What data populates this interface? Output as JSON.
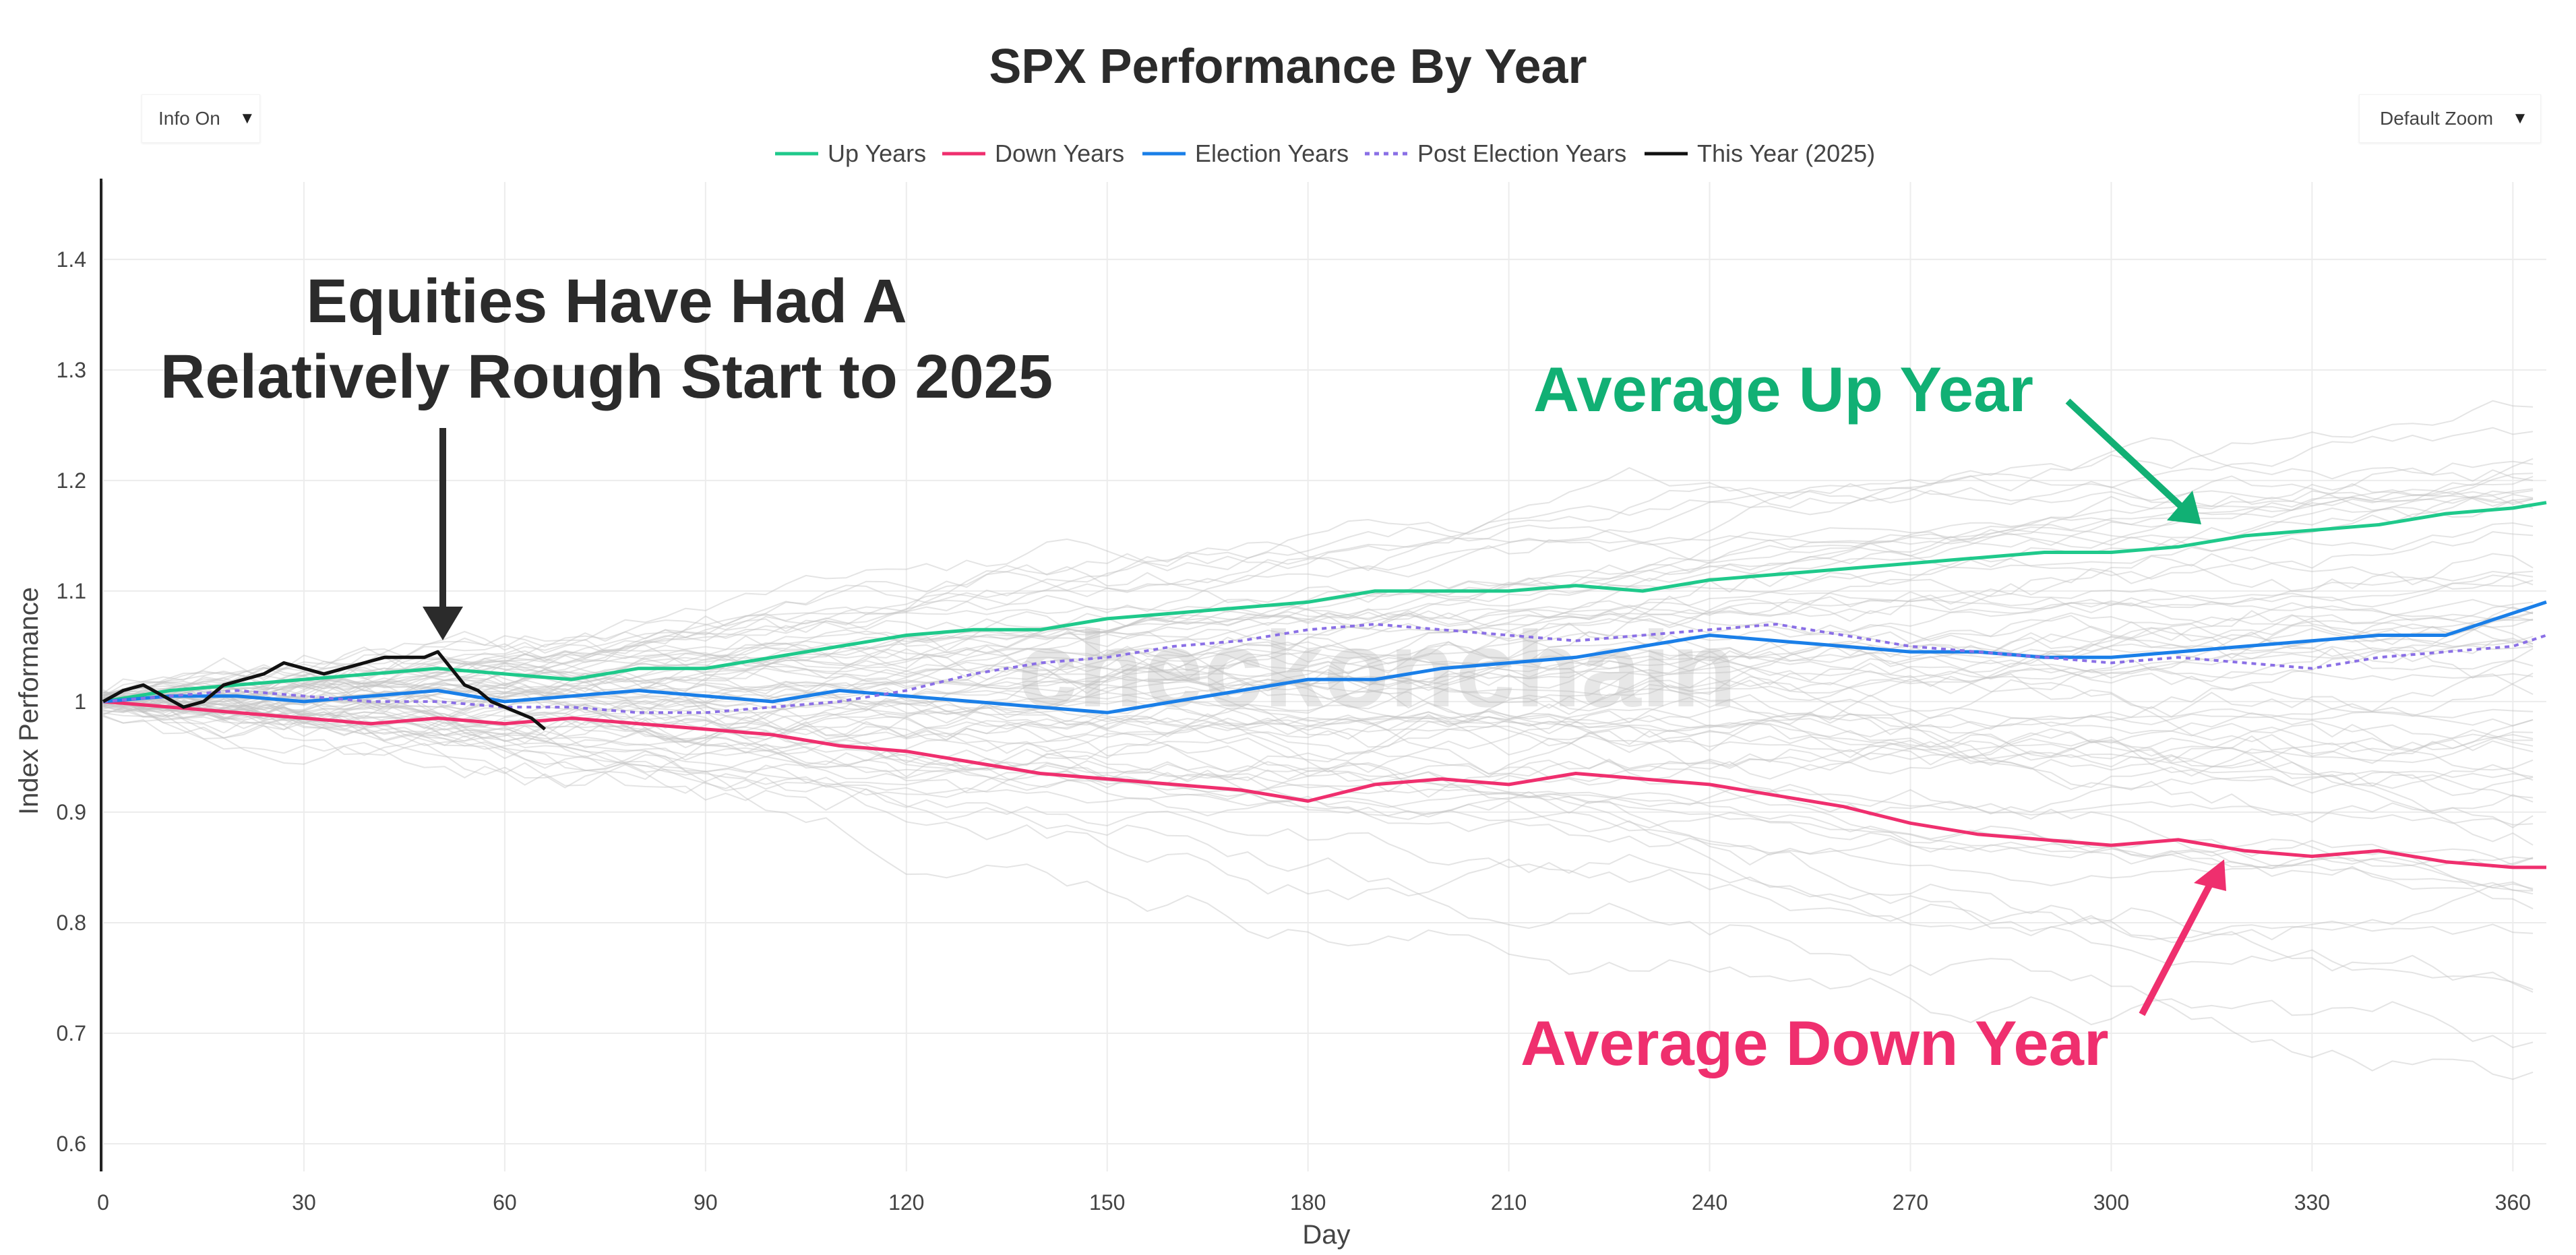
{
  "controls": {
    "info_label": "Info On",
    "zoom_label": "Default Zoom",
    "caret": "▼"
  },
  "colors": {
    "up": "#1fc98b",
    "down": "#ef2f6e",
    "election": "#1a7fe8",
    "post_election": "#8a6fe6",
    "this_year": "#111111",
    "background_lines": "#c4c4c4",
    "annotation_up": "#11b074",
    "annotation_down": "#ef2f6e",
    "annotation_black": "#2b2b2b"
  },
  "chart_data": {
    "type": "line",
    "title": "SPX Performance By Year",
    "xlabel": "Day",
    "ylabel": "Index Performance",
    "xlim": [
      0,
      365
    ],
    "ylim": [
      0.575,
      1.47
    ],
    "xticks": [
      0,
      30,
      60,
      90,
      120,
      150,
      180,
      210,
      240,
      270,
      300,
      330,
      360
    ],
    "yticks": [
      0.6,
      0.7,
      0.8,
      0.9,
      1.0,
      1.1,
      1.2,
      1.3,
      1.4
    ],
    "ytick_labels": [
      "0.6",
      "0.7",
      "0.8",
      "0.9",
      "1",
      "1.1",
      "1.2",
      "1.3",
      "1.4"
    ],
    "legend_position": "top-center",
    "series": [
      {
        "name": "Up Years",
        "style": "solid",
        "x": [
          0,
          10,
          20,
          30,
          40,
          50,
          60,
          70,
          80,
          90,
          100,
          110,
          120,
          130,
          140,
          150,
          160,
          170,
          180,
          190,
          200,
          210,
          220,
          230,
          240,
          250,
          260,
          270,
          280,
          290,
          300,
          310,
          320,
          330,
          340,
          350,
          360,
          365
        ],
        "y": [
          1.0,
          1.01,
          1.015,
          1.02,
          1.025,
          1.03,
          1.025,
          1.02,
          1.03,
          1.03,
          1.04,
          1.05,
          1.06,
          1.065,
          1.065,
          1.075,
          1.08,
          1.085,
          1.09,
          1.1,
          1.1,
          1.1,
          1.105,
          1.1,
          1.11,
          1.115,
          1.12,
          1.125,
          1.13,
          1.135,
          1.135,
          1.14,
          1.15,
          1.155,
          1.16,
          1.17,
          1.175,
          1.18
        ]
      },
      {
        "name": "Down Years",
        "style": "solid",
        "x": [
          0,
          10,
          20,
          30,
          40,
          50,
          60,
          70,
          80,
          90,
          100,
          110,
          120,
          130,
          140,
          150,
          160,
          170,
          180,
          190,
          200,
          210,
          220,
          230,
          240,
          250,
          260,
          270,
          280,
          290,
          300,
          310,
          320,
          330,
          340,
          350,
          360,
          365
        ],
        "y": [
          1.0,
          0.995,
          0.99,
          0.985,
          0.98,
          0.985,
          0.98,
          0.985,
          0.98,
          0.975,
          0.97,
          0.96,
          0.955,
          0.945,
          0.935,
          0.93,
          0.925,
          0.92,
          0.91,
          0.925,
          0.93,
          0.925,
          0.935,
          0.93,
          0.925,
          0.915,
          0.905,
          0.89,
          0.88,
          0.875,
          0.87,
          0.875,
          0.865,
          0.86,
          0.865,
          0.855,
          0.85,
          0.85
        ]
      },
      {
        "name": "Election Years",
        "style": "solid",
        "x": [
          0,
          10,
          20,
          30,
          40,
          50,
          60,
          70,
          80,
          90,
          100,
          110,
          120,
          130,
          140,
          150,
          160,
          170,
          180,
          190,
          200,
          210,
          220,
          230,
          240,
          250,
          260,
          270,
          280,
          290,
          300,
          310,
          320,
          330,
          340,
          350,
          360,
          365
        ],
        "y": [
          1.0,
          1.005,
          1.005,
          1.0,
          1.005,
          1.01,
          1.0,
          1.005,
          1.01,
          1.005,
          1.0,
          1.01,
          1.005,
          1.0,
          0.995,
          0.99,
          1.0,
          1.01,
          1.02,
          1.02,
          1.03,
          1.035,
          1.04,
          1.05,
          1.06,
          1.055,
          1.05,
          1.045,
          1.045,
          1.04,
          1.04,
          1.045,
          1.05,
          1.055,
          1.06,
          1.06,
          1.08,
          1.09
        ]
      },
      {
        "name": "Post Election Years",
        "style": "dotted",
        "x": [
          0,
          10,
          20,
          30,
          40,
          50,
          60,
          70,
          80,
          90,
          100,
          110,
          120,
          130,
          140,
          150,
          160,
          170,
          180,
          190,
          200,
          210,
          220,
          230,
          240,
          250,
          260,
          270,
          280,
          290,
          300,
          310,
          320,
          330,
          340,
          350,
          360,
          365
        ],
        "y": [
          1.0,
          1.005,
          1.01,
          1.005,
          1.0,
          1.0,
          0.995,
          0.995,
          0.99,
          0.99,
          0.995,
          1.0,
          1.01,
          1.025,
          1.035,
          1.04,
          1.05,
          1.055,
          1.065,
          1.07,
          1.065,
          1.06,
          1.055,
          1.06,
          1.065,
          1.07,
          1.06,
          1.05,
          1.045,
          1.04,
          1.035,
          1.04,
          1.035,
          1.03,
          1.04,
          1.045,
          1.05,
          1.06
        ]
      },
      {
        "name": "This Year (2025)",
        "style": "solid",
        "x": [
          0,
          3,
          6,
          9,
          12,
          15,
          18,
          21,
          24,
          27,
          30,
          33,
          36,
          39,
          42,
          45,
          48,
          50,
          52,
          54,
          56,
          58,
          60,
          62,
          64,
          66
        ],
        "y": [
          1.0,
          1.01,
          1.015,
          1.005,
          0.995,
          1.0,
          1.015,
          1.02,
          1.025,
          1.035,
          1.03,
          1.025,
          1.03,
          1.035,
          1.04,
          1.04,
          1.04,
          1.045,
          1.03,
          1.015,
          1.01,
          1.0,
          0.995,
          0.99,
          0.985,
          0.975
        ]
      }
    ],
    "annotations": [
      "Equities Have Had A",
      "Relatively Rough Start to 2025",
      "Average Up Year",
      "Average Down Year"
    ]
  }
}
